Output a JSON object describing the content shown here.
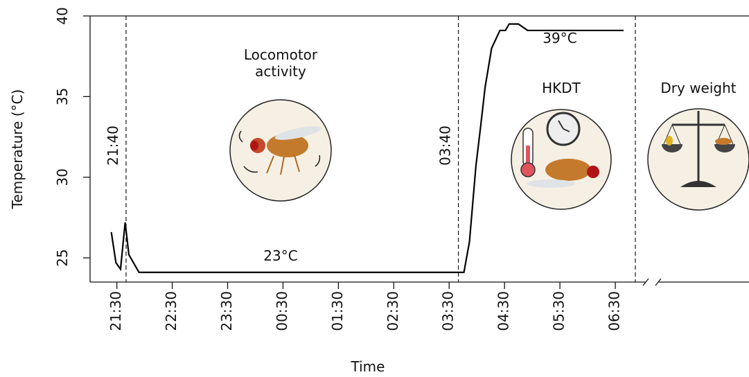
{
  "chart_data": {
    "type": "line",
    "x_label": "Time",
    "y_label": "Temperature (°C)",
    "x": [
      "21:24",
      "21:29",
      "21:34",
      "21:39",
      "21:43",
      "21:54",
      "03:46",
      "03:52",
      "03:59",
      "04:04",
      "04:09",
      "04:16",
      "04:25",
      "04:31",
      "04:35",
      "04:45",
      "04:55",
      "06:39"
    ],
    "values": [
      26.6,
      24.7,
      24.3,
      27.2,
      25.2,
      24.1,
      24.1,
      26.0,
      30.7,
      33.1,
      35.6,
      38.0,
      39.1,
      39.1,
      39.5,
      39.5,
      39.1,
      39.1
    ],
    "color": "#000000",
    "xlim": [
      "21:01",
      "07:09"
    ],
    "ylim": [
      23.5,
      40
    ],
    "xticks": [
      "21:30",
      "22:30",
      "23:30",
      "00:30",
      "01:30",
      "02:30",
      "03:30",
      "04:30",
      "05:30",
      "06:30"
    ],
    "yticks": [
      25,
      30,
      35,
      40
    ],
    "vlines": [
      "21:40",
      "03:40"
    ],
    "annotations": [
      "23°C",
      "39°C"
    ],
    "stages": [
      [
        "Locomotor",
        "activity"
      ],
      [
        "HKDT"
      ],
      [
        "Dry weight"
      ]
    ]
  }
}
